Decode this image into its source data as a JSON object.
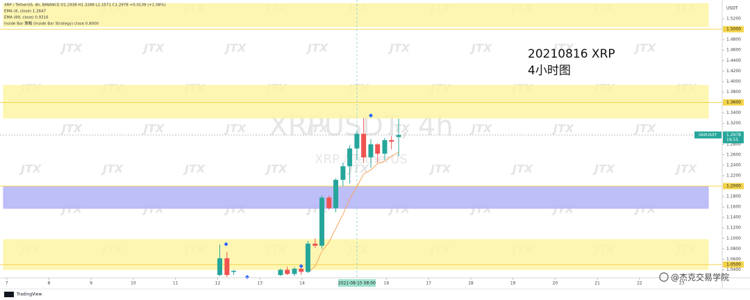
{
  "chart_data": {
    "type": "candlestick",
    "legend": [
      "XRP / TetherUS, 4h, BINANCE  O1.2938 H1.3288 L1.2571 C1.2978 +0.0139 (+1.08%)",
      "EMA (8, close) 1.2647",
      "EMA (89, close) 0.9316",
      "Inside Bar 策略 (Inside Bar Strategy) close 0.8000"
    ],
    "watermark": "JTX",
    "symbol_watermark": "XRPUSDT, 4h",
    "symbol_subtitle": "XRP / TetherUS",
    "annotations": [
      "20210816 XRP",
      "4小时图"
    ],
    "axis_unit": "USDT",
    "branding": "TradingView",
    "credit": "@杰克交易学院",
    "x": [
      12.05,
      12.22,
      12.38,
      13.49,
      13.65,
      13.82,
      13.98,
      14.14,
      14.31,
      14.47,
      14.64,
      14.8,
      14.97,
      15.13,
      15.3,
      15.46,
      15.63,
      15.79,
      15.96,
      16.12,
      16.29
    ],
    "open": [
      1.03,
      1.062,
      1.036,
      1.03,
      1.04,
      1.032,
      1.042,
      1.036,
      1.09,
      1.086,
      1.178,
      1.158,
      1.212,
      1.238,
      1.272,
      1.3,
      1.255,
      1.28,
      1.262,
      1.288,
      1.2938
    ],
    "high": [
      1.088,
      1.074,
      1.04,
      1.042,
      1.046,
      1.045,
      1.048,
      1.095,
      1.1,
      1.182,
      1.182,
      1.215,
      1.245,
      1.278,
      1.305,
      1.33,
      1.29,
      1.282,
      1.292,
      1.296,
      1.3288
    ],
    "low": [
      1.028,
      1.026,
      1.03,
      1.028,
      1.03,
      1.028,
      1.03,
      1.034,
      1.082,
      1.08,
      1.155,
      1.15,
      1.2,
      1.205,
      1.25,
      1.245,
      1.235,
      1.245,
      1.25,
      1.27,
      1.2571
    ],
    "close": [
      1.062,
      1.03,
      1.038,
      1.04,
      1.032,
      1.042,
      1.036,
      1.09,
      1.086,
      1.178,
      1.158,
      1.212,
      1.238,
      1.272,
      1.3,
      1.255,
      1.28,
      1.262,
      1.288,
      1.285,
      1.2978
    ],
    "up_color": "#26a69a",
    "down_color": "#ef5350",
    "ema": {
      "color": "#f7a35c",
      "values": [
        null,
        null,
        null,
        null,
        null,
        null,
        null,
        1.035,
        1.047,
        1.075,
        1.093,
        1.119,
        1.146,
        1.175,
        1.199,
        1.223,
        1.231,
        1.243,
        1.248,
        1.257,
        1.2647
      ]
    },
    "signals": {
      "color": "#2962ff",
      "x": [
        12.2,
        12.7,
        13.98,
        15.63
      ],
      "values": [
        1.089,
        1.026,
        1.047,
        1.335
      ]
    },
    "zones": [
      {
        "from": 1.505,
        "to": 1.549,
        "color": "#fdf5a6"
      },
      {
        "from": 1.33,
        "to": 1.3926,
        "color": "#fdf5a6"
      },
      {
        "from": 1.1575,
        "to": 1.2,
        "color": "#b3b3f7"
      },
      {
        "from": 1.0406,
        "to": 1.0977,
        "color": "#fdf5a6"
      }
    ],
    "levels": [
      {
        "value": 1.5,
        "label": "1.5000",
        "color": "#f3d34a"
      },
      {
        "value": 1.36,
        "label": "1.3600",
        "color": "#f3d34a"
      },
      {
        "value": 1.2,
        "label": "1.2000",
        "color": "#f3d34a"
      },
      {
        "value": 1.05,
        "label": "1.0500",
        "color": "#f3d34a"
      }
    ],
    "last_price": {
      "value": 1.2978,
      "tag": "XRPUSDT",
      "countdown": "19:55",
      "color": "#26a69a"
    },
    "crosshair": {
      "value": 15.3,
      "label": "2021-08-15 08:00"
    },
    "xlim": [
      6.84,
      23.96
    ],
    "ylim": [
      1.0247,
      1.5559
    ],
    "xticks": [
      7,
      8,
      9,
      10,
      11,
      12,
      13,
      14,
      16,
      17,
      18,
      19,
      20,
      21,
      22,
      23
    ],
    "yticks": [
      {
        "value": 1.04,
        "label": "1.0400"
      },
      {
        "value": 1.06,
        "label": "1.0600"
      },
      {
        "value": 1.08,
        "label": "1.0800"
      },
      {
        "value": 1.1,
        "label": "1.1000"
      },
      {
        "value": 1.12,
        "label": "1.1200"
      },
      {
        "value": 1.14,
        "label": "1.1400"
      },
      {
        "value": 1.16,
        "label": "1.1600"
      },
      {
        "value": 1.18,
        "label": "1.1800"
      },
      {
        "value": 1.22,
        "label": "1.2200"
      },
      {
        "value": 1.24,
        "label": "1.2400"
      },
      {
        "value": 1.26,
        "label": "1.2600"
      },
      {
        "value": 1.28,
        "label": "1.2800"
      },
      {
        "value": 1.32,
        "label": "1.3200"
      },
      {
        "value": 1.34,
        "label": "1.3400"
      },
      {
        "value": 1.38,
        "label": "1.3800"
      },
      {
        "value": 1.4,
        "label": "1.4000"
      },
      {
        "value": 1.42,
        "label": "1.4200"
      },
      {
        "value": 1.44,
        "label": "1.4400"
      },
      {
        "value": 1.46,
        "label": "1.4600"
      },
      {
        "value": 1.48,
        "label": "1.4800"
      },
      {
        "value": 1.52,
        "label": "1.5200"
      }
    ]
  }
}
